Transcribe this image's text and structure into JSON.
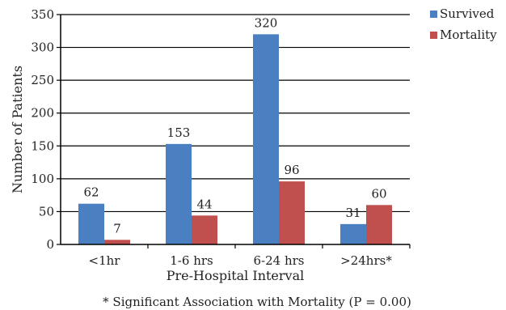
{
  "chart_data": {
    "type": "bar",
    "categories": [
      "<1hr",
      "1-6 hrs",
      "6-24 hrs",
      ">24hrs*"
    ],
    "series": [
      {
        "name": "Survived",
        "values": [
          62,
          153,
          320,
          31
        ],
        "color": "#4a7fc1"
      },
      {
        "name": "Mortality",
        "values": [
          7,
          44,
          96,
          60
        ],
        "color": "#c0504d"
      }
    ],
    "xlabel": "Pre-Hospital Interval",
    "ylabel": "Number of Patients",
    "ylim": [
      0,
      350
    ],
    "yticks": [
      0,
      50,
      100,
      150,
      200,
      250,
      300,
      350
    ],
    "grid": true,
    "legend_position": "top-right",
    "footnote": "* Significant Association with Mortality (P = 0.00)"
  }
}
